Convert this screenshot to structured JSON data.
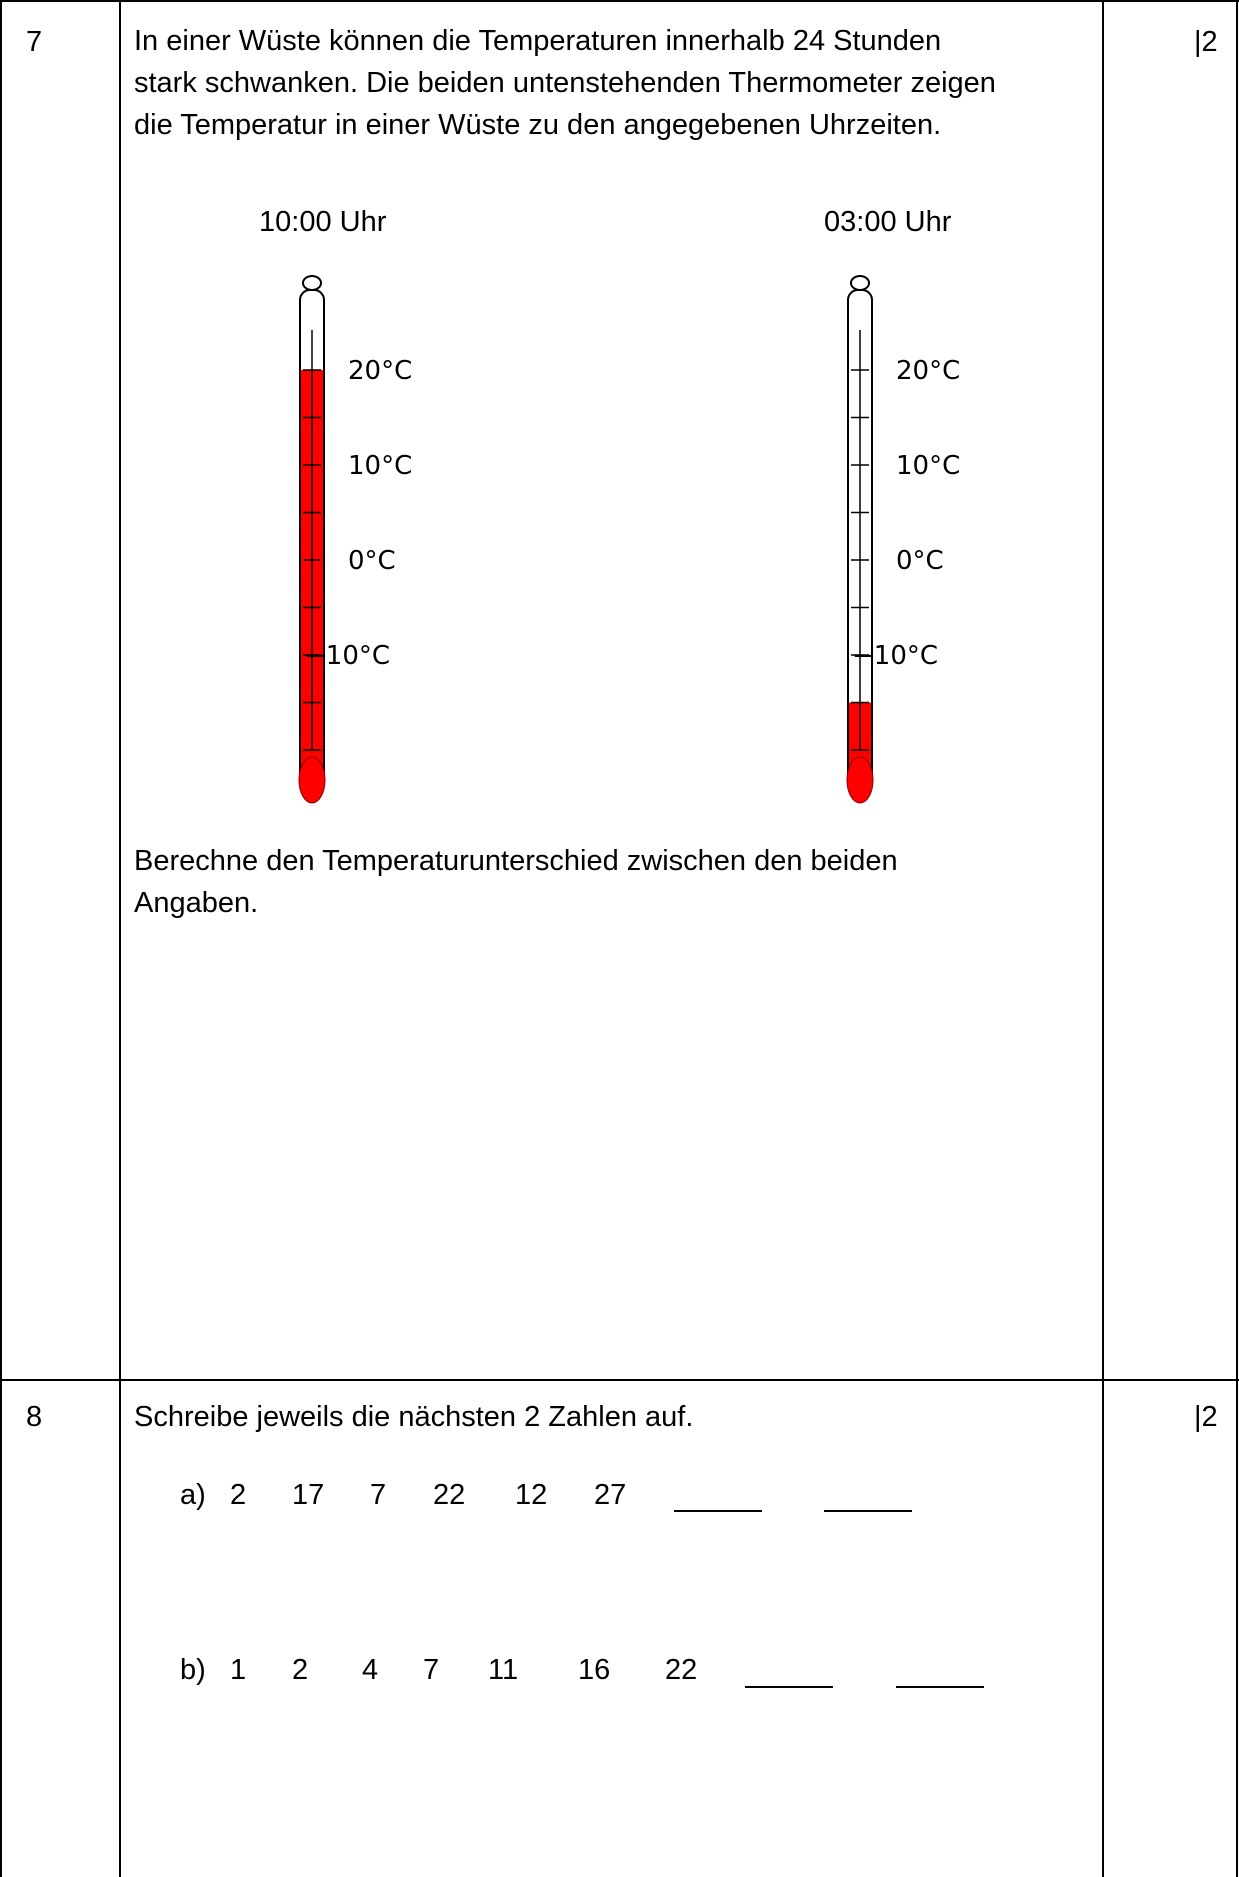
{
  "q7": {
    "number": "7",
    "points": "|2",
    "intro_lines": [
      "In einer Wüste können die Temperaturen innerhalb 24 Stunden",
      "stark schwanken. Die beiden untenstehenden Thermometer zeigen",
      "die Temperatur in einer Wüste zu den angegebenen Uhrzeiten."
    ],
    "thermometers": [
      {
        "time_label": "10:00 Uhr",
        "temperature_celsius": 20,
        "scale_labels": [
          "20°C",
          "10°C",
          "0°C",
          "−10°C"
        ]
      },
      {
        "time_label": "03:00 Uhr",
        "temperature_celsius": -15,
        "scale_labels": [
          "20°C",
          "10°C",
          "0°C",
          "−10°C"
        ]
      }
    ],
    "task_lines": [
      "Berechne den Temperaturunterschied zwischen den beiden",
      "Angaben."
    ],
    "fluid_color": "#ff0000"
  },
  "q8": {
    "number": "8",
    "points": "|2",
    "instruction": "Schreibe jeweils die nächsten 2 Zahlen auf.",
    "sequences": [
      {
        "label": "a)",
        "numbers": [
          "2",
          "17",
          "7",
          "22",
          "12",
          "27"
        ]
      },
      {
        "label": "b)",
        "numbers": [
          "1",
          "2",
          "4",
          "7",
          "11",
          "16",
          "22"
        ]
      }
    ]
  }
}
